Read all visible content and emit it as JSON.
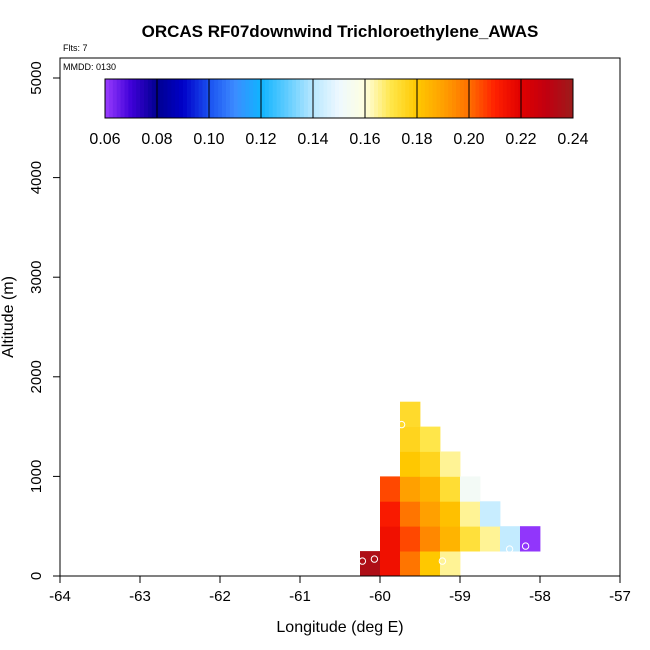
{
  "chart_data": {
    "type": "heatmap",
    "title": "ORCAS RF07downwind Trichloroethylene_AWAS",
    "xlabel": "Longitude (deg E)",
    "ylabel": "Altitude (m)",
    "xlim": [
      -64,
      -57
    ],
    "ylim": [
      0,
      5200
    ],
    "x_ticks": [
      -64,
      -63,
      -62,
      -61,
      -60,
      -59,
      -58,
      -57
    ],
    "y_ticks": [
      0,
      1000,
      2000,
      3000,
      4000,
      5000
    ],
    "flights_label": "Flts: 7",
    "date_label": "MMDD: 0130",
    "colorbar": {
      "min": 0.06,
      "max": 0.24,
      "ticks": [
        "0.06",
        "0.08",
        "0.10",
        "0.12",
        "0.14",
        "0.16",
        "0.18",
        "0.20",
        "0.22",
        "0.24"
      ],
      "stops": [
        {
          "v": 0.06,
          "c": "#9a3cff"
        },
        {
          "v": 0.07,
          "c": "#3f00d8"
        },
        {
          "v": 0.08,
          "c": "#000090"
        },
        {
          "v": 0.09,
          "c": "#0000c8"
        },
        {
          "v": 0.1,
          "c": "#1a50f0"
        },
        {
          "v": 0.11,
          "c": "#3c8cff"
        },
        {
          "v": 0.12,
          "c": "#10b4ff"
        },
        {
          "v": 0.13,
          "c": "#60ccff"
        },
        {
          "v": 0.14,
          "c": "#b8e8ff"
        },
        {
          "v": 0.15,
          "c": "#eef8ff"
        },
        {
          "v": 0.16,
          "c": "#ffffe0"
        },
        {
          "v": 0.17,
          "c": "#ffe64a"
        },
        {
          "v": 0.18,
          "c": "#ffc800"
        },
        {
          "v": 0.19,
          "c": "#ffa000"
        },
        {
          "v": 0.2,
          "c": "#ff7000"
        },
        {
          "v": 0.21,
          "c": "#ff2000"
        },
        {
          "v": 0.22,
          "c": "#e00000"
        },
        {
          "v": 0.23,
          "c": "#c00010"
        },
        {
          "v": 0.24,
          "c": "#9c1c1c"
        }
      ]
    },
    "cell_size": {
      "lon": 0.25,
      "alt": 250
    },
    "cells": [
      {
        "lon": -60.125,
        "alt": 125,
        "value": 0.235
      },
      {
        "lon": -59.875,
        "alt": 125,
        "value": 0.215
      },
      {
        "lon": -59.875,
        "alt": 375,
        "value": 0.215
      },
      {
        "lon": -59.875,
        "alt": 625,
        "value": 0.212
      },
      {
        "lon": -59.875,
        "alt": 875,
        "value": 0.205
      },
      {
        "lon": -59.625,
        "alt": 125,
        "value": 0.199
      },
      {
        "lon": -59.625,
        "alt": 375,
        "value": 0.205
      },
      {
        "lon": -59.625,
        "alt": 625,
        "value": 0.199
      },
      {
        "lon": -59.625,
        "alt": 875,
        "value": 0.19
      },
      {
        "lon": -59.625,
        "alt": 1125,
        "value": 0.18
      },
      {
        "lon": -59.625,
        "alt": 1375,
        "value": 0.176
      },
      {
        "lon": -59.625,
        "alt": 1625,
        "value": 0.174
      },
      {
        "lon": -59.375,
        "alt": 125,
        "value": 0.18
      },
      {
        "lon": -59.375,
        "alt": 375,
        "value": 0.195
      },
      {
        "lon": -59.375,
        "alt": 625,
        "value": 0.19
      },
      {
        "lon": -59.375,
        "alt": 875,
        "value": 0.185
      },
      {
        "lon": -59.375,
        "alt": 1125,
        "value": 0.176
      },
      {
        "lon": -59.375,
        "alt": 1375,
        "value": 0.17
      },
      {
        "lon": -59.125,
        "alt": 125,
        "value": 0.165
      },
      {
        "lon": -59.125,
        "alt": 375,
        "value": 0.185
      },
      {
        "lon": -59.125,
        "alt": 625,
        "value": 0.182
      },
      {
        "lon": -59.125,
        "alt": 875,
        "value": 0.173
      },
      {
        "lon": -59.125,
        "alt": 1125,
        "value": 0.165
      },
      {
        "lon": -58.875,
        "alt": 375,
        "value": 0.172
      },
      {
        "lon": -58.875,
        "alt": 625,
        "value": 0.165
      },
      {
        "lon": -58.875,
        "alt": 875,
        "value": 0.153
      },
      {
        "lon": -58.625,
        "alt": 375,
        "value": 0.165
      },
      {
        "lon": -58.625,
        "alt": 625,
        "value": 0.143
      },
      {
        "lon": -58.375,
        "alt": 375,
        "value": 0.142
      },
      {
        "lon": -58.125,
        "alt": 375,
        "value": 0.061
      }
    ],
    "points": [
      {
        "lon": -60.22,
        "alt": 150
      },
      {
        "lon": -60.07,
        "alt": 170
      },
      {
        "lon": -59.73,
        "alt": 1520
      },
      {
        "lon": -59.22,
        "alt": 150
      },
      {
        "lon": -58.38,
        "alt": 270
      },
      {
        "lon": -58.18,
        "alt": 300
      }
    ]
  }
}
